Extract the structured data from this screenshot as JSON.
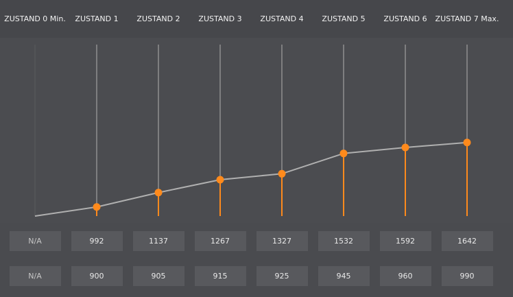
{
  "states": [
    {
      "label": "ZUSTAND 0 Min.",
      "row1": "N/A",
      "row2": "N/A"
    },
    {
      "label": "ZUSTAND 1",
      "row1": "992",
      "row2": "900"
    },
    {
      "label": "ZUSTAND 2",
      "row1": "1137",
      "row2": "905"
    },
    {
      "label": "ZUSTAND 3",
      "row1": "1267",
      "row2": "915"
    },
    {
      "label": "ZUSTAND 4",
      "row1": "1327",
      "row2": "925"
    },
    {
      "label": "ZUSTAND 5",
      "row1": "1532",
      "row2": "945"
    },
    {
      "label": "ZUSTAND 6",
      "row1": "1592",
      "row2": "960"
    },
    {
      "label": "ZUSTAND 7 Max.",
      "row1": "1642",
      "row2": "990"
    }
  ],
  "colors": {
    "accent": "#ff8a1c",
    "line": "#b0b0b0",
    "stem": "#8c8c8c"
  }
}
